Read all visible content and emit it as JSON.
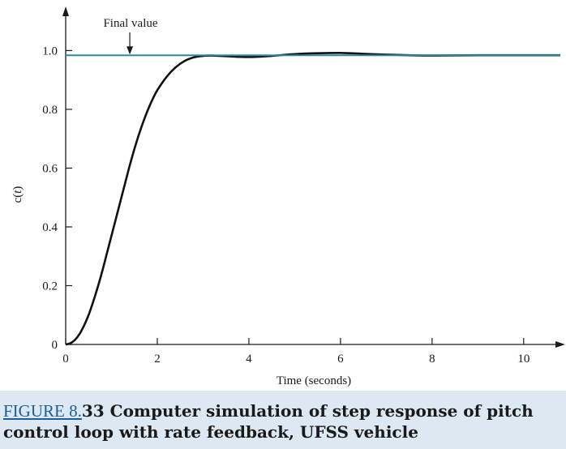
{
  "caption": {
    "figure_label": "FIGURE 8.",
    "figure_number_suffix": "33",
    "text": " Computer simulation of step response of pitch control loop with rate feedback, UFSS vehicle"
  },
  "colors": {
    "panel_background": "#dce8f2",
    "plot_background": "#ffffff",
    "response_curve": "#111111",
    "final_value_line": "#2e86a8",
    "caption_link": "#1f5f97"
  },
  "chart_data": {
    "type": "line",
    "title": "",
    "xlabel": "Time (seconds)",
    "ylabel_prefix": "c(",
    "ylabel_var": "t",
    "ylabel_suffix": ")",
    "xlim": [
      0,
      10.8
    ],
    "ylim": [
      0,
      1.15
    ],
    "xticks": [
      0,
      2,
      4,
      6,
      8,
      10
    ],
    "yticks": [
      0,
      0.2,
      0.4,
      0.6,
      0.8,
      1.0
    ],
    "xtick_labels": [
      "0",
      "2",
      "4",
      "6",
      "8",
      "10"
    ],
    "ytick_labels": [
      "0",
      "0.2",
      "0.4",
      "0.6",
      "0.8",
      "1.0"
    ],
    "grid": false,
    "annotation": {
      "text": "Final value",
      "x": 1.4,
      "y": 0.984
    },
    "series": [
      {
        "role": "step-response",
        "x": [
          0,
          0.1,
          0.2,
          0.3,
          0.4,
          0.5,
          0.6,
          0.7,
          0.8,
          0.9,
          1.0,
          1.1,
          1.2,
          1.3,
          1.4,
          1.5,
          1.6,
          1.7,
          1.8,
          1.9,
          2.0,
          2.2,
          2.4,
          2.6,
          2.8,
          3.0,
          3.2,
          3.5,
          4.0,
          4.5,
          5.0,
          5.5,
          6.0,
          6.5,
          7.0,
          7.5,
          8.0,
          9.0,
          10.0,
          10.8
        ],
        "y": [
          0,
          0.004,
          0.015,
          0.035,
          0.064,
          0.1,
          0.145,
          0.195,
          0.25,
          0.31,
          0.37,
          0.43,
          0.49,
          0.55,
          0.61,
          0.665,
          0.715,
          0.76,
          0.8,
          0.835,
          0.865,
          0.91,
          0.943,
          0.965,
          0.977,
          0.982,
          0.983,
          0.981,
          0.978,
          0.982,
          0.988,
          0.991,
          0.992,
          0.989,
          0.986,
          0.984,
          0.983,
          0.984,
          0.984,
          0.984
        ]
      },
      {
        "role": "final-value",
        "x": [
          0,
          10.8
        ],
        "y": [
          0.984,
          0.984
        ]
      }
    ]
  }
}
